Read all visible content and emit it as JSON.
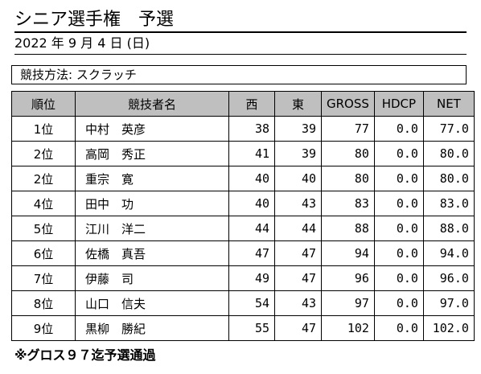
{
  "header": {
    "title": "シニア選手権　予選",
    "date": "2022 年 9 月 4 日 (日)",
    "method": "競技方法: スクラッチ"
  },
  "table": {
    "columns": [
      "順位",
      "競技者名",
      "西",
      "東",
      "GROSS",
      "HDCP",
      "NET"
    ],
    "rows": [
      [
        "1位",
        "中村　英彦",
        "38",
        "39",
        "77",
        "0.0",
        "77.0"
      ],
      [
        "2位",
        "高岡　秀正",
        "41",
        "39",
        "80",
        "0.0",
        "80.0"
      ],
      [
        "2位",
        "重宗　寛",
        "40",
        "40",
        "80",
        "0.0",
        "80.0"
      ],
      [
        "4位",
        "田中　功",
        "40",
        "43",
        "83",
        "0.0",
        "83.0"
      ],
      [
        "5位",
        "江川　洋二",
        "44",
        "44",
        "88",
        "0.0",
        "88.0"
      ],
      [
        "6位",
        "佐橋　真吾",
        "47",
        "47",
        "94",
        "0.0",
        "94.0"
      ],
      [
        "7位",
        "伊藤　司",
        "49",
        "47",
        "96",
        "0.0",
        "96.0"
      ],
      [
        "8位",
        "山口　信夫",
        "54",
        "43",
        "97",
        "0.0",
        "97.0"
      ],
      [
        "9位",
        "黒柳　勝紀",
        "55",
        "47",
        "102",
        "0.0",
        "102.0"
      ]
    ]
  },
  "footer": {
    "note": "※グロス９７迄予選通過"
  }
}
